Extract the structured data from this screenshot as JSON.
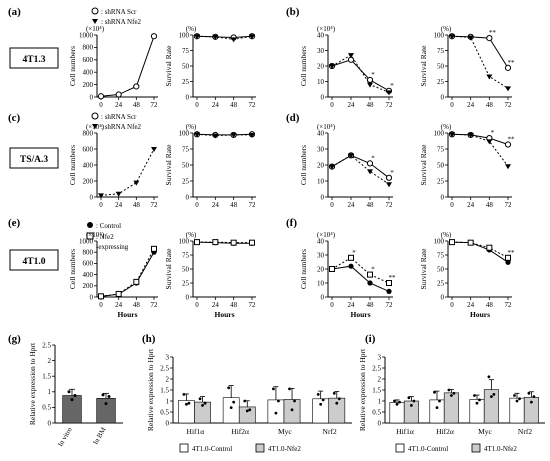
{
  "panels": [
    "(a)",
    "(b)",
    "(c)",
    "(d)",
    "(e)",
    "(f)",
    "(g)",
    "(h)",
    "(i)"
  ],
  "cell_lines": [
    "4T1.3",
    "TS/A.3",
    "4T1.0"
  ],
  "legends": {
    "scr": ": shRNA Scr",
    "nfe2": ": shRNA Nfe2",
    "control": ": Control",
    "nfe2_expr_1": ": Nfe2",
    "nfe2_expr_2": "-expressing",
    "bar_control": "4T1.0-Control",
    "bar_nfe2": "4T1.0-Nfe2"
  },
  "chart_data": [
    {
      "id": "a-num",
      "panel": "(a)",
      "type": "line",
      "ylabel": "Cell numbers",
      "yunit": "(×10⁴)",
      "xlabel": "",
      "ylim": [
        0,
        1000
      ],
      "yticks": [
        0,
        200,
        400,
        600,
        800,
        1000
      ],
      "x": [
        0,
        24,
        48,
        72
      ],
      "series": [
        {
          "name": "shRNA Scr",
          "values": [
            12,
            40,
            170,
            980
          ]
        }
      ]
    },
    {
      "id": "a-surv",
      "panel": "(a)",
      "type": "line",
      "ylabel": "Survival Rate",
      "yunit": "(%)",
      "xlabel": "",
      "ylim": [
        0,
        100
      ],
      "yticks": [
        0,
        25,
        50,
        75,
        100
      ],
      "x": [
        0,
        24,
        48,
        72
      ],
      "series": [
        {
          "name": "shRNA Scr",
          "values": [
            98,
            97,
            96,
            98
          ]
        },
        {
          "name": "shRNA Nfe2",
          "values": [
            98,
            97,
            93,
            98
          ]
        }
      ]
    },
    {
      "id": "b-num",
      "panel": "(b)",
      "type": "line",
      "ylabel": "Cell numbers",
      "yunit": "(×10⁴)",
      "xlabel": "",
      "ylim": [
        0,
        40
      ],
      "yticks": [
        0,
        10,
        20,
        30,
        40
      ],
      "x": [
        0,
        24,
        48,
        72
      ],
      "series": [
        {
          "name": "shRNA Scr",
          "values": [
            20,
            24,
            11,
            4
          ]
        },
        {
          "name": "shRNA Nfe2",
          "values": [
            20,
            27,
            8,
            3
          ]
        }
      ],
      "annotations": [
        {
          "x": 48,
          "text": "*"
        },
        {
          "x": 72,
          "text": "*"
        }
      ]
    },
    {
      "id": "b-surv",
      "panel": "(b)",
      "type": "line",
      "ylabel": "Survival Rate",
      "yunit": "(%)",
      "xlabel": "",
      "ylim": [
        0,
        100
      ],
      "yticks": [
        0,
        25,
        50,
        75,
        100
      ],
      "x": [
        0,
        24,
        48,
        72
      ],
      "series": [
        {
          "name": "shRNA Scr",
          "values": [
            98,
            97,
            95,
            47
          ]
        },
        {
          "name": "shRNA Nfe2",
          "values": [
            98,
            96,
            33,
            14
          ]
        }
      ],
      "annotations": [
        {
          "x": 48,
          "text": "**"
        },
        {
          "x": 72,
          "text": "**"
        }
      ]
    },
    {
      "id": "c-num",
      "panel": "(c)",
      "type": "line",
      "ylabel": "Cell numbers",
      "yunit": "(×10⁴)",
      "xlabel": "",
      "ylim": [
        0,
        800
      ],
      "yticks": [
        0,
        200,
        400,
        600,
        800
      ],
      "x": [
        0,
        24,
        48,
        72
      ],
      "series": [
        {
          "name": "shRNA Nfe2",
          "values": [
            20,
            40,
            180,
            600
          ]
        }
      ]
    },
    {
      "id": "c-surv",
      "panel": "(c)",
      "type": "line",
      "ylabel": "Survival Rate",
      "yunit": "(%)",
      "xlabel": "",
      "ylim": [
        0,
        100
      ],
      "yticks": [
        0,
        25,
        50,
        75,
        100
      ],
      "x": [
        0,
        24,
        48,
        72
      ],
      "series": [
        {
          "name": "shRNA Scr",
          "values": [
            98,
            97,
            97,
            98
          ]
        },
        {
          "name": "shRNA Nfe2",
          "values": [
            98,
            96,
            97,
            97
          ]
        }
      ]
    },
    {
      "id": "d-num",
      "panel": "(d)",
      "type": "line",
      "ylabel": "Cell numbers",
      "yunit": "(×10⁴)",
      "xlabel": "",
      "ylim": [
        0,
        40
      ],
      "yticks": [
        0,
        10,
        20,
        30,
        40
      ],
      "x": [
        0,
        24,
        48,
        72
      ],
      "series": [
        {
          "name": "shRNA Scr",
          "values": [
            19,
            26,
            21,
            12
          ]
        },
        {
          "name": "shRNA Nfe2",
          "values": [
            19,
            26,
            16,
            8
          ]
        }
      ],
      "annotations": [
        {
          "x": 48,
          "text": "*"
        },
        {
          "x": 72,
          "text": "*"
        }
      ]
    },
    {
      "id": "d-surv",
      "panel": "(d)",
      "type": "line",
      "ylabel": "Survival Rate",
      "yunit": "(%)",
      "xlabel": "",
      "ylim": [
        0,
        100
      ],
      "yticks": [
        0,
        25,
        50,
        75,
        100
      ],
      "x": [
        0,
        24,
        48,
        72
      ],
      "series": [
        {
          "name": "shRNA Scr",
          "values": [
            98,
            97,
            92,
            82
          ]
        },
        {
          "name": "shRNA Nfe2",
          "values": [
            98,
            97,
            87,
            48
          ]
        }
      ],
      "annotations": [
        {
          "x": 48,
          "text": "*"
        },
        {
          "x": 72,
          "text": "**"
        }
      ]
    },
    {
      "id": "e-num",
      "panel": "(e)",
      "type": "line",
      "ylabel": "Cell numbers",
      "yunit": "(×10⁴)",
      "xlabel": "Hours",
      "ylim": [
        0,
        1000
      ],
      "yticks": [
        0,
        200,
        400,
        600,
        800,
        1000
      ],
      "x": [
        0,
        24,
        48,
        72
      ],
      "series": [
        {
          "name": "Control",
          "values": [
            12,
            50,
            250,
            800
          ]
        },
        {
          "name": "Nfe2-expressing",
          "values": [
            12,
            55,
            270,
            860
          ]
        }
      ]
    },
    {
      "id": "e-surv",
      "panel": "(e)",
      "type": "line",
      "ylabel": "Survival Rate",
      "yunit": "(%)",
      "xlabel": "Hours",
      "ylim": [
        0,
        100
      ],
      "yticks": [
        0,
        25,
        50,
        75,
        100
      ],
      "x": [
        0,
        24,
        48,
        72
      ],
      "series": [
        {
          "name": "Control",
          "values": [
            98,
            97,
            96,
            96
          ]
        },
        {
          "name": "Nfe2-expressing",
          "values": [
            98,
            98,
            97,
            97
          ]
        }
      ]
    },
    {
      "id": "f-num",
      "panel": "(f)",
      "type": "line",
      "ylabel": "Cell numbers",
      "yunit": "(×10⁴)",
      "xlabel": "Hours",
      "ylim": [
        0,
        40
      ],
      "yticks": [
        0,
        10,
        20,
        30,
        40
      ],
      "x": [
        0,
        24,
        48,
        72
      ],
      "series": [
        {
          "name": "Control",
          "values": [
            20,
            22,
            10,
            4
          ]
        },
        {
          "name": "Nfe2-expressing",
          "values": [
            20,
            28,
            16,
            10
          ]
        }
      ],
      "annotations": [
        {
          "x": 24,
          "text": "*"
        },
        {
          "x": 48,
          "text": "*"
        },
        {
          "x": 72,
          "text": "**"
        }
      ]
    },
    {
      "id": "f-surv",
      "panel": "(f)",
      "type": "line",
      "ylabel": "Survival Rate",
      "yunit": "(%)",
      "xlabel": "Hours",
      "ylim": [
        0,
        100
      ],
      "yticks": [
        0,
        25,
        50,
        75,
        100
      ],
      "x": [
        0,
        24,
        48,
        72
      ],
      "series": [
        {
          "name": "Control",
          "values": [
            98,
            97,
            84,
            62
          ]
        },
        {
          "name": "Nfe2-expressing",
          "values": [
            98,
            97,
            88,
            70
          ]
        }
      ],
      "annotations": [
        {
          "x": 72,
          "text": "**"
        }
      ]
    },
    {
      "id": "g",
      "panel": "(g)",
      "type": "bar",
      "ylabel": "Relative expression to Hprt",
      "ylim": [
        0,
        2.5
      ],
      "yticks": [
        0,
        0.5,
        1,
        1.5,
        2,
        2.5
      ],
      "categories": [
        "In vitro",
        "In BM"
      ],
      "values": [
        0.88,
        0.79
      ],
      "errors": [
        0.2,
        0.16
      ],
      "points": [
        [
          1.0,
          0.75,
          0.88
        ],
        [
          0.9,
          0.62,
          0.85
        ]
      ]
    },
    {
      "id": "h",
      "panel": "(h)",
      "type": "bar",
      "ylabel": "Relative expression to Hprt",
      "ylim": [
        0,
        3
      ],
      "yticks": [
        0,
        0.5,
        1,
        1.5,
        2,
        2.5,
        3
      ],
      "categories": [
        "Hif1α",
        "Hif2α",
        "Myc",
        "Nrf2"
      ],
      "series": [
        {
          "name": "4T1.0-Control",
          "values": [
            1.02,
            1.15,
            1.05,
            1.1
          ],
          "errors": [
            0.3,
            0.55,
            0.6,
            0.35
          ],
          "points": [
            [
              1.3,
              0.85,
              0.9
            ],
            [
              1.6,
              0.7,
              0.95
            ],
            [
              1.55,
              0.45,
              1.0
            ],
            [
              1.3,
              0.85,
              1.05
            ]
          ]
        },
        {
          "name": "4T1.0-Nfe2",
          "values": [
            0.95,
            0.73,
            1.07,
            1.13
          ],
          "errors": [
            0.25,
            0.28,
            0.5,
            0.3
          ],
          "points": [
            [
              1.1,
              0.8,
              0.9
            ],
            [
              1.0,
              0.55,
              0.6
            ],
            [
              1.55,
              0.6,
              1.0
            ],
            [
              1.35,
              0.9,
              1.1
            ]
          ]
        }
      ]
    },
    {
      "id": "i",
      "panel": "(i)",
      "type": "bar",
      "ylabel": "Relative expression to Hprt",
      "ylim": [
        0,
        3
      ],
      "yticks": [
        0,
        0.5,
        1,
        1.5,
        2,
        2.5,
        3
      ],
      "categories": [
        "Hif1α",
        "Hif2α",
        "Myc",
        "Nrf2"
      ],
      "series": [
        {
          "name": "4T1.0-Control",
          "values": [
            0.93,
            1.05,
            1.07,
            1.13
          ],
          "errors": [
            0.12,
            0.4,
            0.2,
            0.22
          ],
          "points": [
            [
              1.0,
              0.85,
              0.95
            ],
            [
              1.4,
              0.7,
              1.0
            ],
            [
              1.25,
              0.9,
              1.05
            ],
            [
              1.25,
              1.0,
              1.1
            ]
          ]
        },
        {
          "name": "4T1.0-Nfe2",
          "values": [
            1.0,
            1.37,
            1.52,
            1.17
          ],
          "errors": [
            0.2,
            0.15,
            0.45,
            0.25
          ],
          "points": [
            [
              1.15,
              0.8,
              1.0
            ],
            [
              1.5,
              1.25,
              1.35
            ],
            [
              2.1,
              1.2,
              1.3
            ],
            [
              1.35,
              0.95,
              1.2
            ]
          ]
        }
      ]
    }
  ]
}
